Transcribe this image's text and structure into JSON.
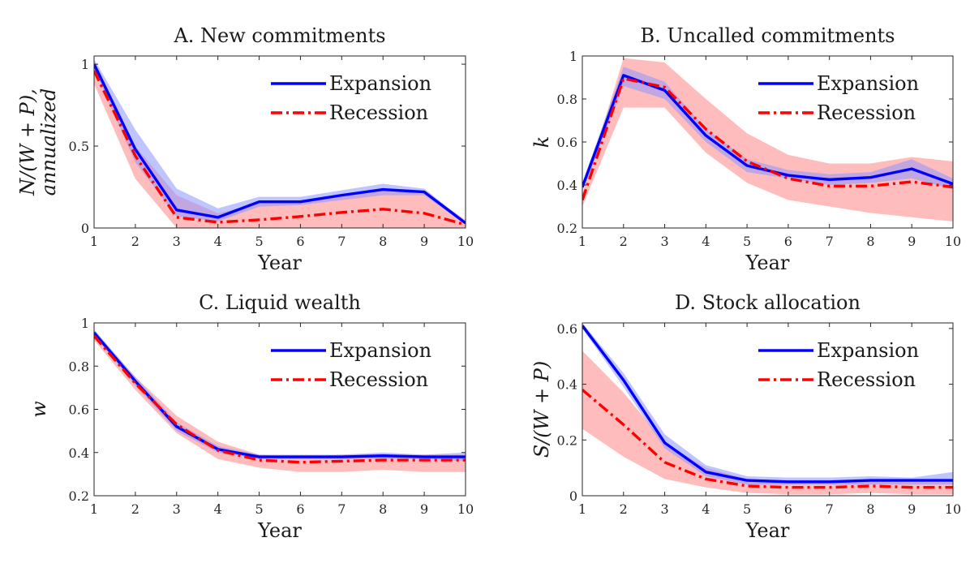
{
  "figure": {
    "xlabel": "Year"
  },
  "colors": {
    "expansion": "#0000ff",
    "recession": "#ff0000",
    "expansion_band": "#8c96ff",
    "recession_band": "#ff8f8f"
  },
  "chart_data": [
    {
      "id": "A",
      "type": "line",
      "title": "A. New commitments",
      "ylabel": [
        "N/(W + P),",
        "annualized"
      ],
      "xlabel": "Year",
      "x": [
        1,
        2,
        3,
        4,
        5,
        6,
        7,
        8,
        9,
        10
      ],
      "xlim": [
        1,
        10
      ],
      "ylim": [
        0,
        1.05
      ],
      "yticks": [
        0,
        0.5,
        1
      ],
      "ytick_labels": [
        "0",
        "0.5",
        "1"
      ],
      "legend": "top-right",
      "series": [
        {
          "name": "Expansion",
          "style": "solid",
          "values": [
            1.0,
            0.48,
            0.11,
            0.065,
            0.16,
            0.16,
            0.2,
            0.235,
            0.22,
            0.03
          ],
          "band_lower": [
            0.97,
            0.4,
            0.07,
            0.04,
            0.13,
            0.14,
            0.17,
            0.2,
            0.2,
            0.02
          ],
          "band_upper": [
            1.03,
            0.6,
            0.24,
            0.12,
            0.19,
            0.19,
            0.23,
            0.27,
            0.24,
            0.04
          ]
        },
        {
          "name": "Recession",
          "style": "dashdot",
          "values": [
            0.96,
            0.44,
            0.065,
            0.035,
            0.05,
            0.07,
            0.095,
            0.115,
            0.09,
            0.02
          ],
          "band_lower": [
            0.88,
            0.3,
            0.0,
            0.0,
            0.0,
            0.0,
            0.0,
            0.0,
            0.0,
            0.0
          ],
          "band_upper": [
            1.0,
            0.5,
            0.2,
            0.09,
            0.15,
            0.16,
            0.2,
            0.23,
            0.22,
            0.05
          ]
        }
      ]
    },
    {
      "id": "B",
      "type": "line",
      "title": "B. Uncalled commitments",
      "ylabel": [
        "k"
      ],
      "xlabel": "Year",
      "x": [
        1,
        2,
        3,
        4,
        5,
        6,
        7,
        8,
        9,
        10
      ],
      "xlim": [
        1,
        10
      ],
      "ylim": [
        0.2,
        1
      ],
      "yticks": [
        0.2,
        0.4,
        0.6,
        0.8,
        1
      ],
      "ytick_labels": [
        "0.2",
        "0.4",
        "0.6",
        "0.8",
        "1"
      ],
      "legend": "top-right",
      "series": [
        {
          "name": "Expansion",
          "style": "solid",
          "values": [
            0.39,
            0.91,
            0.84,
            0.63,
            0.49,
            0.445,
            0.425,
            0.435,
            0.475,
            0.405
          ],
          "band_lower": [
            0.37,
            0.86,
            0.8,
            0.6,
            0.46,
            0.43,
            0.4,
            0.41,
            0.43,
            0.38
          ],
          "band_upper": [
            0.41,
            0.95,
            0.88,
            0.66,
            0.52,
            0.47,
            0.45,
            0.46,
            0.52,
            0.43
          ]
        },
        {
          "name": "Recession",
          "style": "dashdot",
          "values": [
            0.33,
            0.895,
            0.855,
            0.66,
            0.51,
            0.43,
            0.395,
            0.395,
            0.415,
            0.39
          ],
          "band_lower": [
            0.3,
            0.76,
            0.76,
            0.55,
            0.41,
            0.33,
            0.3,
            0.27,
            0.25,
            0.23
          ],
          "band_upper": [
            0.36,
            0.99,
            0.97,
            0.8,
            0.64,
            0.54,
            0.5,
            0.5,
            0.53,
            0.51
          ]
        }
      ]
    },
    {
      "id": "C",
      "type": "line",
      "title": "C. Liquid wealth",
      "ylabel": [
        "w"
      ],
      "xlabel": "Year",
      "x": [
        1,
        2,
        3,
        4,
        5,
        6,
        7,
        8,
        9,
        10
      ],
      "xlim": [
        1,
        10
      ],
      "ylim": [
        0.2,
        1
      ],
      "yticks": [
        0.2,
        0.4,
        0.6,
        0.8,
        1
      ],
      "ytick_labels": [
        "0.2",
        "0.4",
        "0.6",
        "0.8",
        "1"
      ],
      "legend": "top-right",
      "series": [
        {
          "name": "Expansion",
          "style": "solid",
          "values": [
            0.955,
            0.73,
            0.52,
            0.415,
            0.38,
            0.38,
            0.38,
            0.385,
            0.38,
            0.38
          ],
          "band_lower": [
            0.94,
            0.71,
            0.5,
            0.4,
            0.37,
            0.37,
            0.37,
            0.37,
            0.37,
            0.36
          ],
          "band_upper": [
            0.97,
            0.75,
            0.54,
            0.43,
            0.39,
            0.39,
            0.39,
            0.4,
            0.39,
            0.4
          ]
        },
        {
          "name": "Recession",
          "style": "dashdot",
          "values": [
            0.94,
            0.72,
            0.53,
            0.41,
            0.365,
            0.355,
            0.36,
            0.365,
            0.365,
            0.365
          ],
          "band_lower": [
            0.92,
            0.69,
            0.49,
            0.37,
            0.33,
            0.31,
            0.31,
            0.32,
            0.31,
            0.31
          ],
          "band_upper": [
            0.96,
            0.75,
            0.57,
            0.45,
            0.39,
            0.38,
            0.39,
            0.39,
            0.39,
            0.39
          ]
        }
      ]
    },
    {
      "id": "D",
      "type": "line",
      "title": "D. Stock allocation",
      "ylabel": [
        "S/(W + P)"
      ],
      "xlabel": "Year",
      "x": [
        1,
        2,
        3,
        4,
        5,
        6,
        7,
        8,
        9,
        10
      ],
      "xlim": [
        1,
        10
      ],
      "ylim": [
        0,
        0.62
      ],
      "yticks": [
        0,
        0.2,
        0.4,
        0.6
      ],
      "ytick_labels": [
        "0",
        "0.2",
        "0.4",
        "0.6"
      ],
      "legend": "top-right",
      "series": [
        {
          "name": "Expansion",
          "style": "solid",
          "values": [
            0.61,
            0.415,
            0.19,
            0.085,
            0.055,
            0.05,
            0.05,
            0.055,
            0.055,
            0.055
          ],
          "band_lower": [
            0.6,
            0.39,
            0.17,
            0.07,
            0.04,
            0.04,
            0.04,
            0.04,
            0.04,
            0.04
          ],
          "band_upper": [
            0.62,
            0.44,
            0.22,
            0.11,
            0.07,
            0.065,
            0.065,
            0.07,
            0.065,
            0.085
          ]
        },
        {
          "name": "Recession",
          "style": "dashdot",
          "values": [
            0.38,
            0.255,
            0.12,
            0.06,
            0.035,
            0.03,
            0.03,
            0.035,
            0.03,
            0.03
          ],
          "band_lower": [
            0.24,
            0.14,
            0.06,
            0.03,
            0.01,
            0.005,
            0.005,
            0.01,
            0.005,
            0.005
          ],
          "band_upper": [
            0.52,
            0.37,
            0.19,
            0.1,
            0.06,
            0.05,
            0.05,
            0.06,
            0.05,
            0.05
          ]
        }
      ]
    }
  ]
}
